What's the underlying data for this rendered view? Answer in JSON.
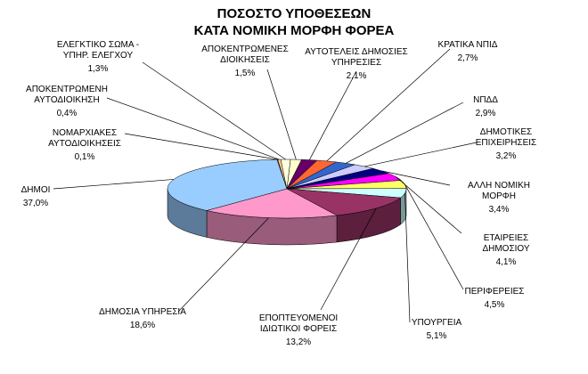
{
  "chart_data": {
    "type": "pie3d",
    "title": "ΠΟΣΟΣΤΟ ΥΠΟΘΕΣΕΩΝ\nΚΑΤΑ ΝΟΜΙΚΗ ΜΟΡΦΗ ΦΟΡΕΑ",
    "categories": [
      "ΑΠΟΚΕΝΤΡΩΜΕΝΕΣ\nΔΙΟΙΚΗΣΕΙΣ",
      "ΑΥΤΟΤΕΛΕΙΣ ΔΗΜΟΣΙΕΣ\nΥΠΗΡΕΣΙΕΣ",
      "ΚΡΑΤΙΚΑ ΝΠΙΔ",
      "ΝΠΔΔ",
      "ΔΗΜΟΤΙΚΕΣ\nΕΠΙΧΕΙΡΗΣΕΙΣ",
      "ΑΛΛΗ ΝΟΜΙΚΗ ΜΟΡΦΗ",
      "ΕΤΑΙΡΕΙΕΣ ΔΗΜΟΣΙΟΥ",
      "ΠΕΡΙΦΕΡΕΙΕΣ",
      "ΥΠΟΥΡΓΕΙΑ",
      "ΕΠΟΠΤΕΥΟΜΕΝΟΙ\nΙΔΙΩΤΙΚΟΙ ΦΟΡΕΙΣ",
      "ΔΗΜΟΣΙΑ ΥΠΗΡΕΣΙΑ",
      "ΔΗΜΟΙ",
      "ΝΟΜΑΡΧΙΑΚΕΣ\nΑΥΤΟΔΙΟΙΚΗΣΕΙΣ",
      "ΑΠΟΚΕΝΤΡΩΜΕΝΗ\nΑΥΤΟΔΙΟΙΚΗΣΗ",
      "ΕΛΕΓΚΤΙΚΟ ΣΩΜΑ -\nΥΠΗΡ. ΕΛΕΓΧΟΥ"
    ],
    "values": [
      1.5,
      2.1,
      2.7,
      2.9,
      3.2,
      3.4,
      4.1,
      4.5,
      5.1,
      13.2,
      18.6,
      37.0,
      0.1,
      0.4,
      1.3
    ],
    "value_labels": [
      "1,5%",
      "2,1%",
      "2,7%",
      "2,9%",
      "3,2%",
      "3,4%",
      "4,1%",
      "4,5%",
      "5,1%",
      "13,2%",
      "18,6%",
      "37,0%",
      "0,1%",
      "0,4%",
      "1,3%"
    ],
    "colors": [
      "#ffffcc",
      "#660066",
      "#ff6633",
      "#3366cc",
      "#ccccff",
      "#000080",
      "#ff00ff",
      "#ffff66",
      "#ccffff",
      "#993366",
      "#ff99cc",
      "#99ccff",
      "#ff9900",
      "#ffcc99",
      "#ffffe0"
    ]
  }
}
